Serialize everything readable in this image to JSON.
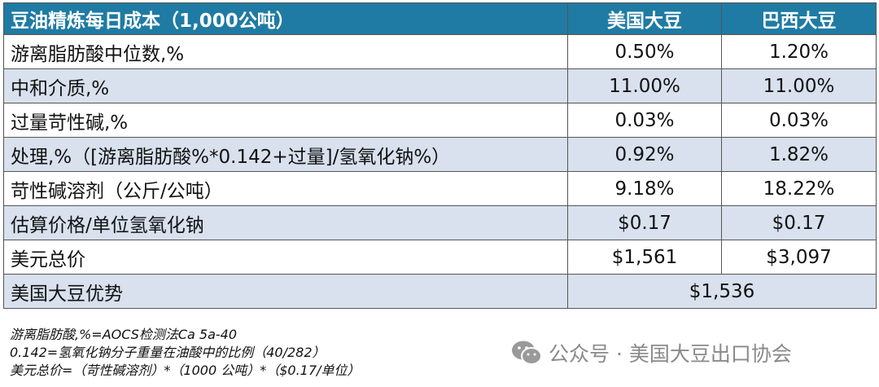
{
  "table": {
    "header": [
      "豆油精炼每日成本（1,000公吨）",
      "美国大豆",
      "巴西大豆"
    ],
    "rows": [
      [
        "游离脂肪酸中位数,%",
        "0.50%",
        "1.20%"
      ],
      [
        "中和介质,%",
        "11.00%",
        "11.00%"
      ],
      [
        "过量苛性碱,%",
        "0.03%",
        "0.03%"
      ],
      [
        "处理,%（[游离脂肪酸%*0.142+过量]/氢氧化钠%）",
        "0.92%",
        "1.82%"
      ],
      [
        "苛性碱溶剂（公斤/公吨）",
        "9.18%",
        "18.22%"
      ],
      [
        "估算价格/单位氢氧化钠",
        "$0.17",
        "$0.17"
      ],
      [
        "美元总价",
        "$1,561",
        "$3,097"
      ],
      [
        "美国大豆优势",
        "$1,536"
      ]
    ]
  },
  "footnotes": [
    "游离脂肪酸,%=AOCS检测法Ca 5a-40",
    "0.142=氢氧化钠分子重量在油酸中的比例（40/282）",
    "美元总价=（苛性碱溶剂）*（1000 公吨）*（$0.17/单位）"
  ],
  "watermark": "公众号 · 美国大豆出口协会"
}
